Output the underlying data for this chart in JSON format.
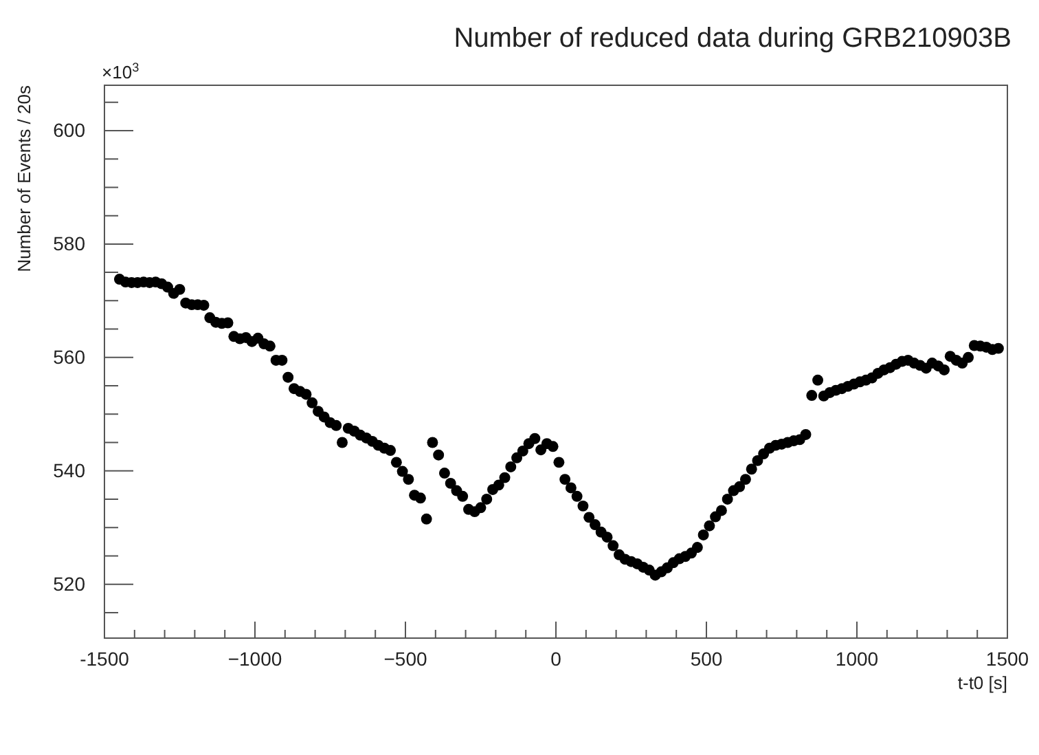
{
  "chart_data": {
    "type": "scatter",
    "title": "Number of reduced data during GRB210903B",
    "xlabel": "t-t0 [s]",
    "ylabel": "Number of Events / 20s",
    "annotations": [
      "×10$^{3}$"
    ],
    "marker": "circle",
    "grid": false,
    "xlim": [
      -1500,
      1500
    ],
    "ylim": [
      510.5,
      608
    ],
    "xticks": [
      -1500,
      {
        "value": -1400,
        "label": null
      },
      {
        "value": -1300,
        "label": null
      },
      {
        "value": -1200,
        "label": null
      },
      {
        "value": -1100,
        "label": null
      },
      {
        "value": -1000,
        "label": "−1000"
      },
      {
        "value": -900,
        "label": null
      },
      {
        "value": -800,
        "label": null
      },
      {
        "value": -700,
        "label": null
      },
      {
        "value": -600,
        "label": null
      },
      {
        "value": -500,
        "label": "−500"
      },
      {
        "value": -400,
        "label": null
      },
      {
        "value": -300,
        "label": null
      },
      {
        "value": -200,
        "label": null
      },
      {
        "value": -100,
        "label": null
      },
      0,
      {
        "value": 100,
        "label": null
      },
      {
        "value": 200,
        "label": null
      },
      {
        "value": 300,
        "label": null
      },
      {
        "value": 400,
        "label": null
      },
      500,
      {
        "value": 600,
        "label": null
      },
      {
        "value": 700,
        "label": null
      },
      {
        "value": 800,
        "label": null
      },
      {
        "value": 900,
        "label": null
      },
      1000,
      {
        "value": 1100,
        "label": null
      },
      {
        "value": 1200,
        "label": null
      },
      {
        "value": 1300,
        "label": null
      },
      {
        "value": 1400,
        "label": null
      },
      1500
    ],
    "yticks": [
      {
        "value": 515,
        "label": null
      },
      520,
      {
        "value": 525,
        "label": null
      },
      {
        "value": 530,
        "label": null
      },
      {
        "value": 535,
        "label": null
      },
      540,
      {
        "value": 545,
        "label": null
      },
      {
        "value": 550,
        "label": null
      },
      {
        "value": 555,
        "label": null
      },
      560,
      {
        "value": 565,
        "label": null
      },
      {
        "value": 570,
        "label": null
      },
      {
        "value": 575,
        "label": null
      },
      580,
      {
        "value": 585,
        "label": null
      },
      {
        "value": 590,
        "label": null
      },
      {
        "value": 595,
        "label": null
      },
      600,
      {
        "value": 605,
        "label": null
      }
    ],
    "series": [
      {
        "color": "#000000",
        "x": [
          -1450,
          -1430,
          -1410,
          -1390,
          -1370,
          -1350,
          -1330,
          -1310,
          -1290,
          -1270,
          -1250,
          -1230,
          -1210,
          -1190,
          -1170,
          -1150,
          -1130,
          -1110,
          -1090,
          -1070,
          -1050,
          -1030,
          -1010,
          -990,
          -970,
          -950,
          -930,
          -910,
          -890,
          -870,
          -850,
          -830,
          -810,
          -790,
          -770,
          -750,
          -730,
          -710,
          -690,
          -670,
          -650,
          -630,
          -610,
          -590,
          -570,
          -550,
          -530,
          -510,
          -490,
          -470,
          -450,
          -430,
          -410,
          -390,
          -370,
          -350,
          -330,
          -310,
          -290,
          -270,
          -250,
          -230,
          -210,
          -190,
          -170,
          -150,
          -130,
          -110,
          -90,
          -70,
          -50,
          -30,
          -10,
          10,
          30,
          50,
          70,
          90,
          110,
          130,
          150,
          170,
          190,
          210,
          230,
          250,
          270,
          290,
          310,
          330,
          350,
          370,
          390,
          410,
          430,
          450,
          470,
          490,
          510,
          530,
          550,
          570,
          590,
          610,
          630,
          650,
          670,
          690,
          710,
          730,
          750,
          770,
          790,
          810,
          830,
          850,
          870,
          890,
          910,
          930,
          950,
          970,
          990,
          1010,
          1030,
          1050,
          1070,
          1090,
          1110,
          1130,
          1150,
          1170,
          1190,
          1210,
          1230,
          1250,
          1270,
          1290,
          1310,
          1330,
          1350,
          1370,
          1390,
          1410,
          1430,
          1450,
          1470
        ],
        "values": [
          573.8,
          573.3,
          573.2,
          573.2,
          573.3,
          573.2,
          573.3,
          573.0,
          572.4,
          571.3,
          572.0,
          569.6,
          569.3,
          569.3,
          569.2,
          567.0,
          566.2,
          566.0,
          566.1,
          563.7,
          563.3,
          563.5,
          562.8,
          563.4,
          562.4,
          562.0,
          559.5,
          559.5,
          556.5,
          554.5,
          554.0,
          553.5,
          552.0,
          550.5,
          549.5,
          548.5,
          548.0,
          545.0,
          547.5,
          547.0,
          546.3,
          545.8,
          545.2,
          544.5,
          544.0,
          543.6,
          541.5,
          539.9,
          538.5,
          535.7,
          535.2,
          531.5,
          545.0,
          542.8,
          539.6,
          537.8,
          536.5,
          535.5,
          533.2,
          532.8,
          533.5,
          535.0,
          536.7,
          537.5,
          538.8,
          540.7,
          542.3,
          543.5,
          544.8,
          545.7,
          543.7,
          544.8,
          544.3,
          541.5,
          538.5,
          537.0,
          535.5,
          533.8,
          531.8,
          530.5,
          529.2,
          528.3,
          526.8,
          525.2,
          524.4,
          524.0,
          523.6,
          523.0,
          522.5,
          521.6,
          522.2,
          522.9,
          523.8,
          524.5,
          524.9,
          525.5,
          526.5,
          528.7,
          530.3,
          531.9,
          533.0,
          535.0,
          536.5,
          537.2,
          538.5,
          540.3,
          541.8,
          543.0,
          544.0,
          544.5,
          544.7,
          545.0,
          545.3,
          545.5,
          546.4,
          553.3,
          556.0,
          553.2,
          553.8,
          554.2,
          554.5,
          554.9,
          555.3,
          555.7,
          556.0,
          556.4,
          557.2,
          557.8,
          558.2,
          558.8,
          559.3,
          559.5,
          559.0,
          558.6,
          558.1,
          559.0,
          558.5,
          557.8,
          560.2,
          559.5,
          559.0,
          560.0,
          562.1,
          562.0,
          561.8,
          561.4,
          561.6
        ]
      }
    ]
  }
}
